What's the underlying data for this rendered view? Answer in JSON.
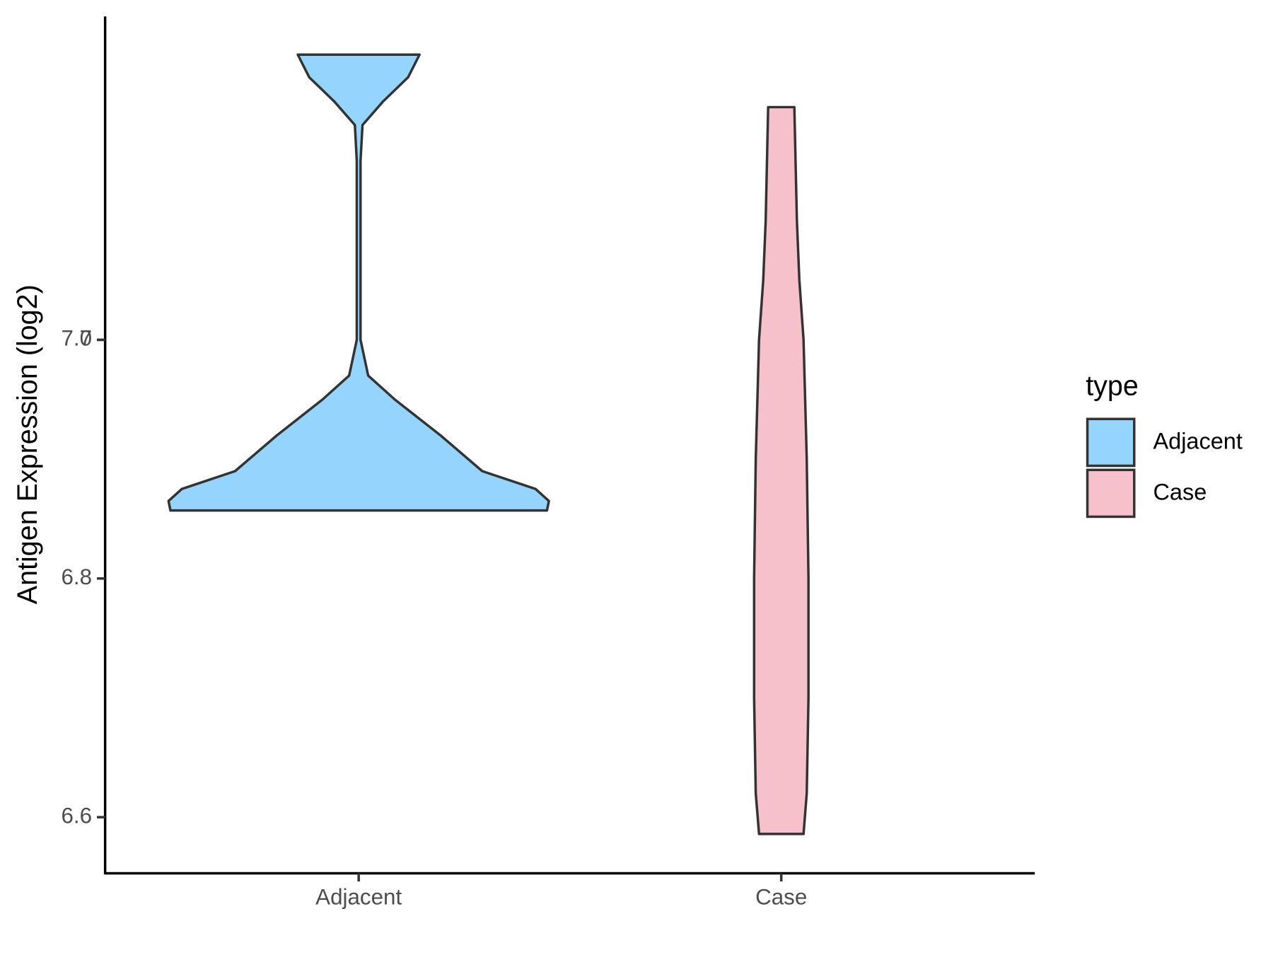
{
  "chart_data": {
    "type": "violin",
    "y_label": "Antigen Expression (log2)",
    "categories": [
      "Adjacent",
      "Case"
    ],
    "legend_title": "type",
    "ylim": [
      6.553,
      7.271
    ],
    "yticks": [
      6.6,
      6.8,
      7.0,
      {
        "value": 7.0,
        "label": "7.0"
      }
    ],
    "series": [
      {
        "name": "Adjacent",
        "color": "#94d4fd",
        "y": [
          6.857,
          6.865,
          6.875,
          6.89,
          6.92,
          6.95,
          6.97,
          7.0,
          7.15,
          7.18,
          7.2,
          7.22,
          7.239
        ],
        "width": [
          0.99,
          1.0,
          0.93,
          0.65,
          0.43,
          0.19,
          0.05,
          0.01,
          0.01,
          0.02,
          0.13,
          0.26,
          0.32
        ]
      },
      {
        "name": "Case",
        "color": "#f7c1cb",
        "y": [
          6.586,
          6.62,
          6.7,
          6.8,
          6.9,
          7.0,
          7.05,
          7.1,
          7.195
        ],
        "width": [
          0.117,
          0.134,
          0.143,
          0.143,
          0.134,
          0.117,
          0.095,
          0.082,
          0.069
        ]
      }
    ]
  }
}
